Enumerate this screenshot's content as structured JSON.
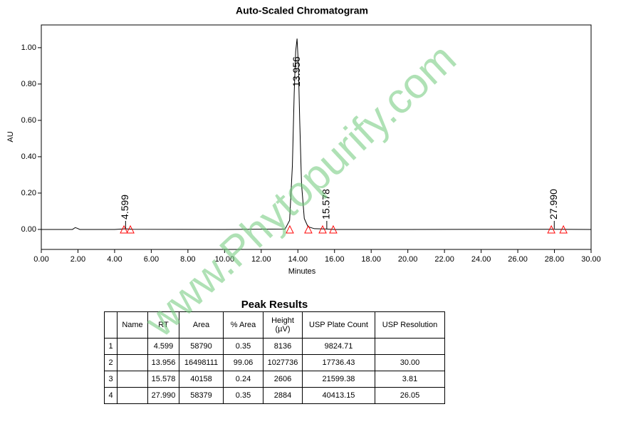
{
  "chart_data": {
    "type": "line",
    "title": "Auto-Scaled Chromatogram",
    "x_label": "Minutes",
    "y_label": "AU",
    "x": [
      0,
      1.7,
      1.85,
      1.95,
      2.1,
      4.0,
      4.599,
      5.0,
      10.0,
      13.3,
      13.55,
      13.7,
      13.8,
      13.88,
      13.956,
      14.03,
      14.1,
      14.2,
      14.35,
      14.55,
      14.9,
      15.578,
      16.0,
      20.0,
      27.99,
      30.0
    ],
    "series": [
      {
        "name": "AU",
        "color": "#000000",
        "values": [
          0.0,
          0.0,
          0.01,
          0.007,
          0.0,
          0.0,
          0.003,
          0.001,
          0.0,
          0.002,
          0.05,
          0.35,
          0.75,
          0.98,
          1.05,
          0.9,
          0.6,
          0.25,
          0.06,
          0.015,
          0.004,
          0.002,
          0.0,
          0.0,
          0.001,
          0.0
        ]
      }
    ],
    "xlim": [
      0,
      30
    ],
    "ylim": [
      -0.11,
      1.125
    ],
    "xticks": [
      {
        "value": 0,
        "label": "0.00"
      },
      {
        "value": 2,
        "label": "2.00"
      },
      {
        "value": 4,
        "label": "4.00"
      },
      {
        "value": 6,
        "label": "6.00"
      },
      {
        "value": 8,
        "label": "8.00"
      },
      {
        "value": 10,
        "label": "10.00"
      },
      {
        "value": 12,
        "label": "12.00"
      },
      {
        "value": 14,
        "label": "14.00"
      },
      {
        "value": 16,
        "label": "16.00"
      },
      {
        "value": 18,
        "label": "18.00"
      },
      {
        "value": 20,
        "label": "20.00"
      },
      {
        "value": 22,
        "label": "22.00"
      },
      {
        "value": 24,
        "label": "24.00"
      },
      {
        "value": 26,
        "label": "26.00"
      },
      {
        "value": 28,
        "label": "28.00"
      },
      {
        "value": 30,
        "label": "30.00"
      }
    ],
    "yticks": [
      {
        "value": 0,
        "label": "0.00"
      },
      {
        "value": 0.2,
        "label": "0.20"
      },
      {
        "value": 0.4,
        "label": "0.40"
      },
      {
        "value": 0.6,
        "label": "0.60"
      },
      {
        "value": 0.8,
        "label": "0.80"
      },
      {
        "value": 1.0,
        "label": "1.00"
      }
    ],
    "peaks": {
      "x": [
        4.599,
        13.956,
        15.578,
        27.99
      ],
      "labels": [
        "4.599",
        "13.956",
        "15.578",
        "27.990"
      ],
      "markers": [
        4.51,
        4.86,
        13.56,
        14.57,
        15.35,
        15.93,
        27.83,
        28.49
      ],
      "marker_color": "#ff0000"
    }
  },
  "table": {
    "title": "Peak Results",
    "header": [
      null,
      "Name",
      "RT",
      "Area",
      "% Area",
      "Height (µV)",
      "USP Plate Count",
      "USP Resolution"
    ],
    "rows": [
      [
        "1",
        null,
        "4.599",
        "58790",
        "0.35",
        "8136",
        "9824.71",
        null
      ],
      [
        "2",
        null,
        "13.956",
        "16498111",
        "99.06",
        "1027736",
        "17736.43",
        "30.00"
      ],
      [
        "3",
        null,
        "15.578",
        "40158",
        "0.24",
        "2606",
        "21599.38",
        "3.81"
      ],
      [
        "4",
        null,
        "27.990",
        "58379",
        "0.35",
        "2884",
        "40413.15",
        "26.05"
      ]
    ]
  },
  "watermark": "www.Phytopurify.com"
}
